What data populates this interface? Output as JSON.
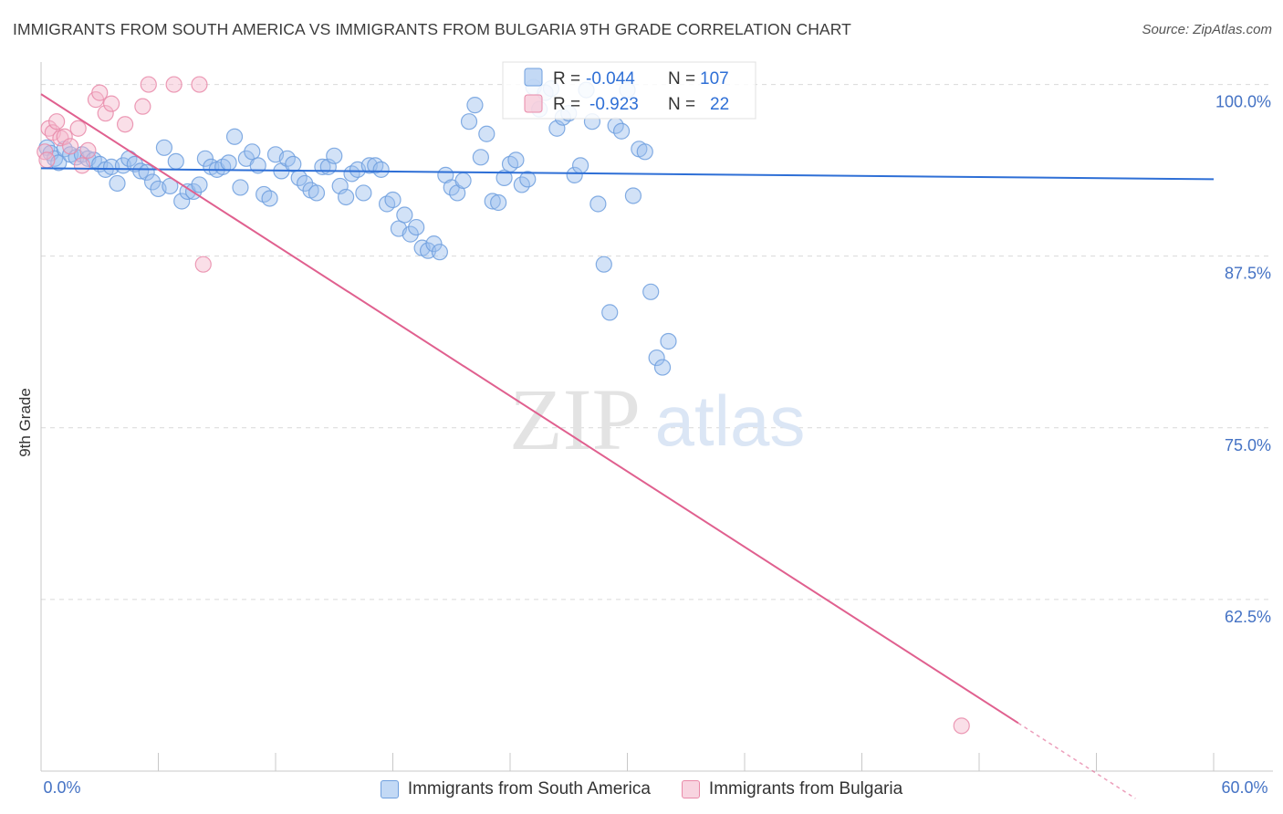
{
  "title": "IMMIGRANTS FROM SOUTH AMERICA VS IMMIGRANTS FROM BULGARIA 9TH GRADE CORRELATION CHART",
  "source": "Source: ZipAtlas.com",
  "watermark": {
    "zip": "ZIP",
    "atlas": "atlas"
  },
  "colors": {
    "blue_fill": "#9bbfee",
    "blue_stroke": "#6f9fde",
    "blue_line": "#2e6fd6",
    "pink_fill": "#f4b8cb",
    "pink_stroke": "#e98aa9",
    "pink_line": "#e0608f",
    "tick_text": "#4472c4",
    "grid": "#d9d9d9"
  },
  "legend_stats": {
    "south_america": {
      "r_label": "R = ",
      "r_value": "-0.044",
      "n_label": "N = ",
      "n_value": "107"
    },
    "bulgaria": {
      "r_label": "R = ",
      "r_value": "-0.923",
      "n_label": "N = ",
      "n_value": "22"
    }
  },
  "chart_data": {
    "type": "scatter",
    "title": "IMMIGRANTS FROM SOUTH AMERICA VS IMMIGRANTS FROM BULGARIA 9TH GRADE CORRELATION CHART",
    "xlabel": "",
    "ylabel": "9th Grade",
    "xlim": [
      0,
      60
    ],
    "ylim": [
      50,
      101.5
    ],
    "x_tick_labels": [
      "0.0%",
      "60.0%"
    ],
    "y_ticks": [
      62.5,
      75.0,
      87.5,
      100.0
    ],
    "y_tick_labels": [
      "62.5%",
      "75.0%",
      "87.5%",
      "100.0%"
    ],
    "grid": "horizontal dashed",
    "legend_position": "bottom",
    "series": [
      {
        "name": "Immigrants from South America",
        "color": "#9bbfee",
        "trend": {
          "x0": 0,
          "y0": 93.9,
          "x1": 60,
          "y1": 93.1
        },
        "points": [
          [
            0.3,
            95.4
          ],
          [
            0.5,
            95.0
          ],
          [
            0.7,
            94.6
          ],
          [
            0.9,
            94.3
          ],
          [
            1.2,
            95.3
          ],
          [
            1.5,
            94.9
          ],
          [
            1.8,
            94.7
          ],
          [
            2.1,
            94.9
          ],
          [
            2.4,
            94.6
          ],
          [
            2.7,
            94.5
          ],
          [
            3.0,
            94.2
          ],
          [
            3.3,
            93.8
          ],
          [
            3.6,
            94.0
          ],
          [
            3.9,
            92.8
          ],
          [
            4.2,
            94.1
          ],
          [
            4.5,
            94.6
          ],
          [
            4.8,
            94.2
          ],
          [
            5.1,
            93.7
          ],
          [
            5.4,
            93.6
          ],
          [
            5.7,
            92.9
          ],
          [
            6.0,
            92.4
          ],
          [
            6.3,
            95.4
          ],
          [
            6.6,
            92.6
          ],
          [
            6.9,
            94.4
          ],
          [
            7.2,
            91.5
          ],
          [
            7.5,
            92.2
          ],
          [
            7.8,
            92.2
          ],
          [
            8.1,
            92.7
          ],
          [
            8.4,
            94.6
          ],
          [
            8.7,
            94.0
          ],
          [
            9.0,
            93.8
          ],
          [
            9.3,
            94.0
          ],
          [
            9.6,
            94.3
          ],
          [
            9.9,
            96.2
          ],
          [
            10.2,
            92.5
          ],
          [
            10.5,
            94.6
          ],
          [
            10.8,
            95.1
          ],
          [
            11.1,
            94.1
          ],
          [
            11.4,
            92.0
          ],
          [
            11.7,
            91.7
          ],
          [
            12.0,
            94.9
          ],
          [
            12.3,
            93.7
          ],
          [
            12.6,
            94.6
          ],
          [
            12.9,
            94.2
          ],
          [
            13.2,
            93.2
          ],
          [
            13.5,
            92.8
          ],
          [
            13.8,
            92.3
          ],
          [
            14.1,
            92.1
          ],
          [
            14.4,
            94.0
          ],
          [
            14.7,
            94.0
          ],
          [
            15.0,
            94.8
          ],
          [
            15.3,
            92.6
          ],
          [
            15.6,
            91.8
          ],
          [
            15.9,
            93.5
          ],
          [
            16.2,
            93.8
          ],
          [
            16.5,
            92.1
          ],
          [
            16.8,
            94.1
          ],
          [
            17.1,
            94.1
          ],
          [
            17.4,
            93.8
          ],
          [
            17.7,
            91.3
          ],
          [
            18.0,
            91.6
          ],
          [
            18.3,
            89.5
          ],
          [
            18.6,
            90.5
          ],
          [
            18.9,
            89.1
          ],
          [
            19.2,
            89.6
          ],
          [
            19.5,
            88.1
          ],
          [
            19.8,
            87.9
          ],
          [
            20.1,
            88.4
          ],
          [
            20.4,
            87.8
          ],
          [
            20.7,
            93.4
          ],
          [
            21.0,
            92.5
          ],
          [
            21.3,
            92.1
          ],
          [
            21.6,
            93.0
          ],
          [
            21.9,
            97.3
          ],
          [
            22.2,
            98.5
          ],
          [
            22.5,
            94.7
          ],
          [
            22.8,
            96.4
          ],
          [
            23.1,
            91.5
          ],
          [
            23.4,
            91.4
          ],
          [
            23.7,
            93.2
          ],
          [
            24.0,
            94.2
          ],
          [
            24.3,
            94.5
          ],
          [
            24.6,
            92.7
          ],
          [
            24.9,
            93.1
          ],
          [
            25.2,
            99.8
          ],
          [
            25.5,
            98.2
          ],
          [
            25.8,
            99.4
          ],
          [
            26.1,
            99.7
          ],
          [
            26.4,
            96.8
          ],
          [
            26.7,
            97.6
          ],
          [
            27.0,
            97.9
          ],
          [
            27.3,
            93.4
          ],
          [
            27.6,
            94.1
          ],
          [
            27.9,
            99.6
          ],
          [
            28.2,
            97.3
          ],
          [
            28.5,
            91.3
          ],
          [
            28.8,
            86.9
          ],
          [
            29.1,
            83.4
          ],
          [
            29.4,
            97.0
          ],
          [
            29.7,
            96.6
          ],
          [
            30.0,
            99.6
          ],
          [
            30.3,
            91.9
          ],
          [
            30.6,
            95.3
          ],
          [
            30.9,
            95.1
          ],
          [
            31.2,
            84.9
          ],
          [
            31.5,
            80.1
          ],
          [
            31.8,
            79.4
          ],
          [
            32.1,
            81.3
          ]
        ]
      },
      {
        "name": "Immigrants from Bulgaria",
        "color": "#f4b8cb",
        "trend": {
          "x0": 0,
          "y0": 99.3,
          "x1": 50,
          "y1": 53.5
        },
        "points": [
          [
            0.2,
            95.1
          ],
          [
            0.4,
            96.8
          ],
          [
            0.6,
            96.5
          ],
          [
            0.8,
            97.3
          ],
          [
            1.0,
            96.1
          ],
          [
            1.2,
            96.2
          ],
          [
            1.5,
            95.5
          ],
          [
            1.9,
            96.8
          ],
          [
            2.1,
            94.1
          ],
          [
            2.4,
            95.2
          ],
          [
            2.8,
            98.9
          ],
          [
            3.0,
            99.4
          ],
          [
            3.3,
            97.9
          ],
          [
            3.6,
            98.6
          ],
          [
            4.3,
            97.1
          ],
          [
            5.2,
            98.4
          ],
          [
            5.5,
            100.0
          ],
          [
            6.8,
            100.0
          ],
          [
            8.1,
            100.0
          ],
          [
            8.3,
            86.9
          ],
          [
            47.1,
            53.3
          ],
          [
            0.3,
            94.5
          ]
        ]
      }
    ]
  },
  "bottom_legend": {
    "south_america": "Immigrants from South America",
    "bulgaria": "Immigrants from Bulgaria"
  }
}
